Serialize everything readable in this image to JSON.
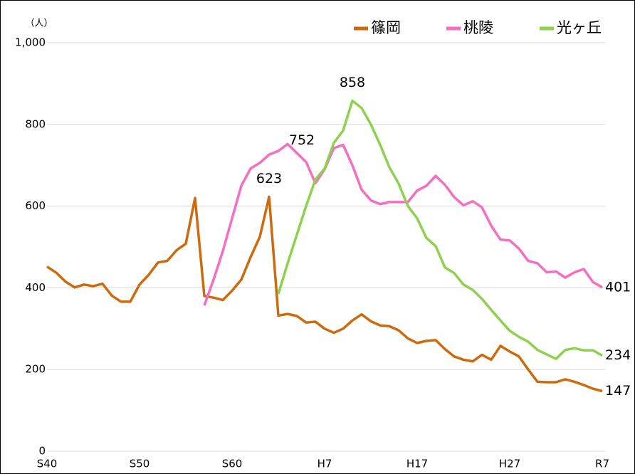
{
  "chart_data": {
    "type": "line",
    "y_label": "（人）",
    "categories": [
      "S40",
      null,
      null,
      null,
      null,
      null,
      null,
      null,
      null,
      null,
      "S50",
      null,
      null,
      null,
      null,
      null,
      null,
      null,
      null,
      null,
      "S60",
      null,
      null,
      null,
      null,
      null,
      null,
      null,
      null,
      null,
      "H7",
      null,
      null,
      null,
      null,
      null,
      null,
      null,
      null,
      null,
      "H17",
      null,
      null,
      null,
      null,
      null,
      null,
      null,
      null,
      null,
      "H27",
      null,
      null,
      null,
      null,
      null,
      null,
      null,
      null,
      null,
      "R7"
    ],
    "series": [
      {
        "name": "篠岡",
        "color": "#cc6a0e",
        "values": [
          452,
          437,
          415,
          401,
          408,
          404,
          410,
          381,
          366,
          366,
          408,
          432,
          462,
          466,
          492,
          508,
          620,
          380,
          376,
          370,
          393,
          420,
          475,
          525,
          623,
          332,
          336,
          331,
          315,
          317,
          300,
          290,
          300,
          320,
          335,
          318,
          308,
          306,
          296,
          276,
          265,
          270,
          272,
          250,
          232,
          224,
          220,
          236,
          224,
          258,
          244,
          232,
          200,
          170,
          169,
          169,
          176,
          170,
          162,
          153,
          147
        ]
      },
      {
        "name": "桃陵",
        "color": "#f46ec2",
        "values": [
          null,
          null,
          null,
          null,
          null,
          null,
          null,
          null,
          null,
          null,
          null,
          null,
          null,
          null,
          null,
          null,
          null,
          357,
          420,
          490,
          570,
          650,
          692,
          706,
          726,
          735,
          752,
          730,
          708,
          656,
          690,
          742,
          750,
          700,
          640,
          614,
          605,
          610,
          610,
          610,
          638,
          650,
          674,
          652,
          622,
          602,
          612,
          597,
          552,
          518,
          516,
          496,
          466,
          460,
          438,
          440,
          425,
          438,
          446,
          414,
          401
        ]
      },
      {
        "name": "光ヶ丘",
        "color": "#8fd14f",
        "values": [
          null,
          null,
          null,
          null,
          null,
          null,
          null,
          null,
          null,
          null,
          null,
          null,
          null,
          null,
          null,
          null,
          null,
          null,
          null,
          null,
          null,
          null,
          null,
          null,
          null,
          385,
          460,
          530,
          600,
          665,
          692,
          755,
          785,
          858,
          840,
          800,
          750,
          695,
          655,
          600,
          570,
          522,
          502,
          450,
          436,
          408,
          395,
          373,
          346,
          320,
          295,
          280,
          268,
          248,
          237,
          226,
          248,
          252,
          247,
          247,
          234
        ]
      }
    ],
    "ylim": [
      0,
      1000
    ],
    "yticks": [
      0,
      200,
      400,
      600,
      800,
      {
        "value": 1000,
        "label": "1,000"
      }
    ],
    "grid": true,
    "legend": "top-right"
  }
}
